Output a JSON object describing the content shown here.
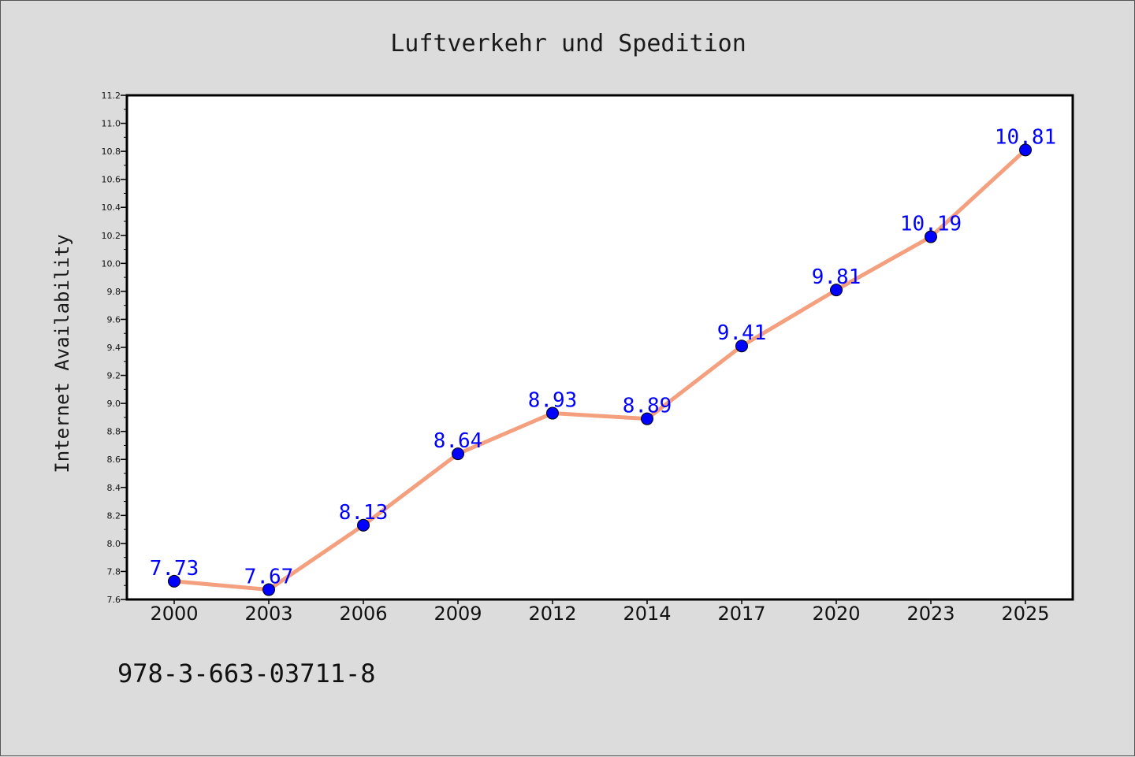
{
  "chart_data": {
    "type": "line",
    "title": "Luftverkehr und Spedition",
    "xlabel": "",
    "ylabel": "Internet Availability",
    "categories": [
      "2000",
      "2003",
      "2006",
      "2009",
      "2012",
      "2014",
      "2017",
      "2020",
      "2023",
      "2025"
    ],
    "series": [
      {
        "values": [
          7.73,
          7.67,
          8.13,
          8.64,
          8.93,
          8.89,
          9.41,
          9.81,
          10.19,
          10.81
        ],
        "labels": [
          "7.73",
          "7.67",
          "8.13",
          "8.64",
          "8.93",
          "8.89",
          "9.41",
          "9.81",
          "10.19",
          "10.81"
        ]
      }
    ],
    "ylim": [
      7.6,
      11.2
    ],
    "yticks": [
      "7.6",
      "7.8",
      "8.0",
      "8.2",
      "8.4",
      "8.6",
      "8.8",
      "9.0",
      "9.2",
      "9.4",
      "9.6",
      "9.8",
      "10.0",
      "10.2",
      "10.4",
      "10.6",
      "10.8",
      "11.0",
      "11.2"
    ],
    "grid": false,
    "legend": "none",
    "colors": {
      "line": "#f4a07e",
      "marker": "#0000ff",
      "label": "#0000ff",
      "plot_background": "#ffffff",
      "figure_background": "#dcdcdc"
    }
  },
  "footer_text": "978-3-663-03711-8"
}
